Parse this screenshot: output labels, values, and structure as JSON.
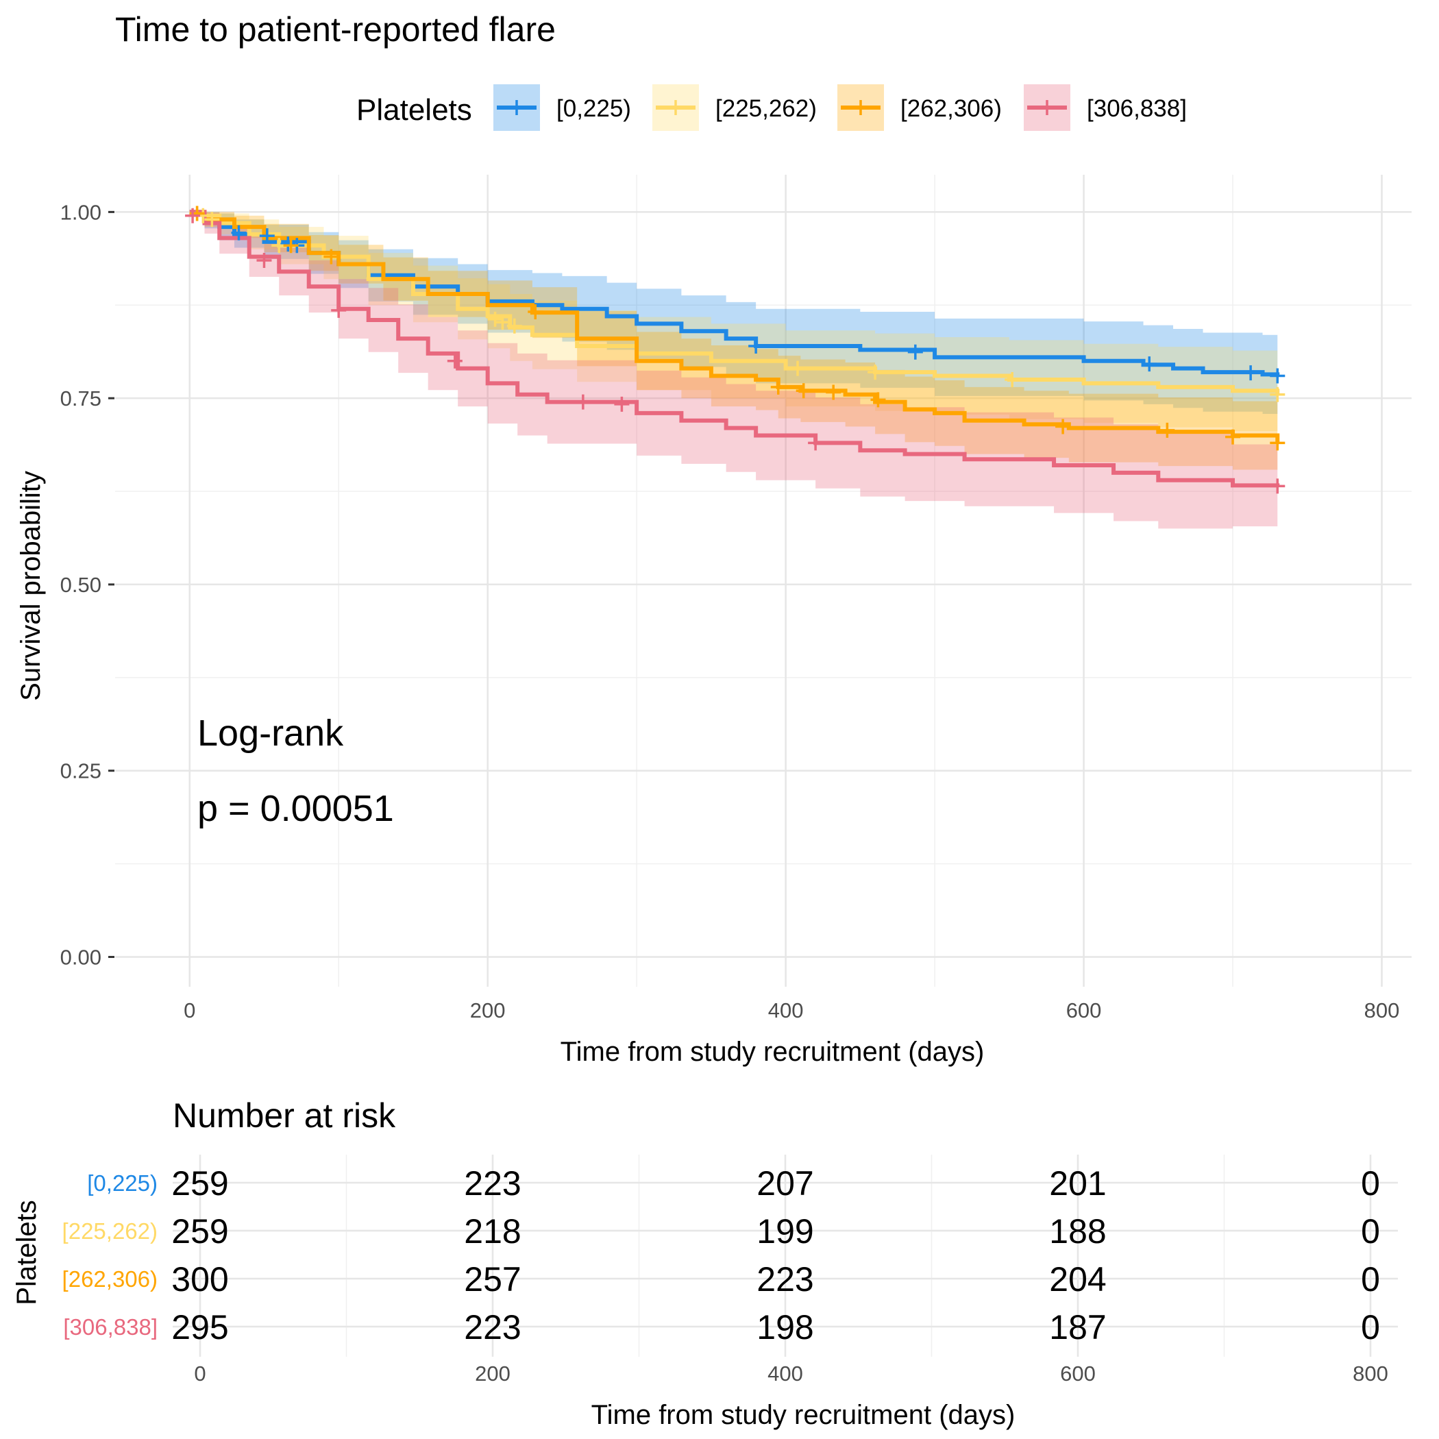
{
  "chart_data": [
    {
      "type": "line",
      "subtype": "kaplan-meier",
      "title": "Time to patient-reported flare",
      "xlabel": "Time from study recruitment (days)",
      "ylabel": "Survival probability",
      "xlim": [
        -50,
        820
      ],
      "ylim": [
        -0.04,
        1.05
      ],
      "x_ticks": [
        0,
        200,
        400,
        600,
        800
      ],
      "y_ticks": [
        0.0,
        0.25,
        0.5,
        0.75,
        1.0
      ],
      "y_tick_labels": [
        "0.00",
        "0.25",
        "0.50",
        "0.75",
        "1.00"
      ],
      "grid": true,
      "legend": {
        "title": "Platelets",
        "placement": "top"
      },
      "annotation": {
        "test": "Log-rank",
        "p_value": "p = 0.00051"
      },
      "series": [
        {
          "name": "[0,225)",
          "color": "#1E88E5",
          "x": [
            0,
            10,
            20,
            30,
            50,
            80,
            100,
            120,
            150,
            180,
            200,
            230,
            250,
            280,
            300,
            330,
            360,
            380,
            400,
            450,
            500,
            550,
            600,
            640,
            660,
            680,
            700,
            720,
            730
          ],
          "y": [
            1.0,
            0.99,
            0.98,
            0.97,
            0.96,
            0.945,
            0.93,
            0.915,
            0.9,
            0.89,
            0.88,
            0.875,
            0.87,
            0.86,
            0.85,
            0.84,
            0.83,
            0.82,
            0.82,
            0.815,
            0.805,
            0.805,
            0.8,
            0.795,
            0.79,
            0.785,
            0.785,
            0.782,
            0.78
          ],
          "lower": [
            1.0,
            0.978,
            0.962,
            0.952,
            0.937,
            0.917,
            0.898,
            0.88,
            0.862,
            0.85,
            0.838,
            0.832,
            0.826,
            0.815,
            0.803,
            0.792,
            0.781,
            0.77,
            0.77,
            0.764,
            0.753,
            0.753,
            0.747,
            0.742,
            0.737,
            0.732,
            0.732,
            0.729,
            0.727
          ],
          "upper": [
            1.0,
            1.0,
            0.998,
            0.99,
            0.983,
            0.973,
            0.962,
            0.95,
            0.938,
            0.93,
            0.922,
            0.918,
            0.914,
            0.905,
            0.897,
            0.888,
            0.879,
            0.87,
            0.87,
            0.866,
            0.857,
            0.857,
            0.853,
            0.848,
            0.843,
            0.838,
            0.838,
            0.835,
            0.833
          ],
          "censor_x": [
            33,
            52,
            66,
            72,
            380,
            487,
            644,
            712,
            730
          ],
          "censor_y": [
            0.972,
            0.968,
            0.957,
            0.955,
            0.82,
            0.812,
            0.796,
            0.784,
            0.78
          ]
        },
        {
          "name": "[225,262)",
          "color": "#FFD966",
          "x": [
            0,
            10,
            20,
            40,
            60,
            90,
            120,
            150,
            180,
            200,
            215,
            230,
            260,
            300,
            350,
            400,
            420,
            460,
            500,
            550,
            600,
            650,
            700,
            730
          ],
          "y": [
            1.0,
            0.995,
            0.985,
            0.97,
            0.955,
            0.94,
            0.91,
            0.89,
            0.87,
            0.86,
            0.845,
            0.835,
            0.82,
            0.81,
            0.8,
            0.79,
            0.79,
            0.785,
            0.78,
            0.775,
            0.77,
            0.765,
            0.76,
            0.755
          ],
          "lower": [
            1.0,
            0.986,
            0.97,
            0.95,
            0.93,
            0.91,
            0.875,
            0.852,
            0.829,
            0.817,
            0.8,
            0.789,
            0.772,
            0.761,
            0.75,
            0.739,
            0.739,
            0.733,
            0.728,
            0.722,
            0.717,
            0.711,
            0.706,
            0.7
          ],
          "upper": [
            1.0,
            1.0,
            0.998,
            0.99,
            0.98,
            0.968,
            0.945,
            0.928,
            0.911,
            0.903,
            0.89,
            0.881,
            0.868,
            0.859,
            0.85,
            0.841,
            0.841,
            0.837,
            0.832,
            0.828,
            0.823,
            0.819,
            0.814,
            0.81
          ],
          "censor_x": [
            5,
            9,
            15,
            60,
            205,
            210,
            218,
            408,
            460,
            552,
            730
          ],
          "censor_y": [
            0.998,
            0.995,
            0.99,
            0.955,
            0.856,
            0.852,
            0.847,
            0.79,
            0.785,
            0.775,
            0.755
          ],
          "legend_only": false
        },
        {
          "name": "[262,306)",
          "color": "#FFA500",
          "x": [
            0,
            10,
            30,
            50,
            80,
            100,
            130,
            160,
            200,
            230,
            260,
            300,
            330,
            350,
            380,
            395,
            410,
            440,
            460,
            480,
            500,
            520,
            560,
            590,
            620,
            650,
            700,
            730
          ],
          "y": [
            1.0,
            0.99,
            0.98,
            0.965,
            0.945,
            0.93,
            0.91,
            0.89,
            0.875,
            0.865,
            0.83,
            0.8,
            0.79,
            0.78,
            0.775,
            0.765,
            0.76,
            0.755,
            0.745,
            0.735,
            0.73,
            0.72,
            0.715,
            0.71,
            0.71,
            0.705,
            0.7,
            0.69
          ],
          "lower": [
            1.0,
            0.98,
            0.965,
            0.946,
            0.921,
            0.904,
            0.881,
            0.859,
            0.842,
            0.831,
            0.793,
            0.761,
            0.75,
            0.739,
            0.734,
            0.723,
            0.718,
            0.712,
            0.702,
            0.691,
            0.686,
            0.675,
            0.67,
            0.664,
            0.664,
            0.659,
            0.654,
            0.643
          ],
          "upper": [
            1.0,
            1.0,
            0.995,
            0.984,
            0.969,
            0.956,
            0.939,
            0.921,
            0.908,
            0.899,
            0.867,
            0.839,
            0.83,
            0.821,
            0.816,
            0.807,
            0.802,
            0.798,
            0.788,
            0.779,
            0.774,
            0.765,
            0.76,
            0.756,
            0.756,
            0.751,
            0.746,
            0.737
          ],
          "censor_x": [
            5,
            68,
            95,
            232,
            395,
            412,
            432,
            462,
            586,
            656,
            700,
            730
          ],
          "censor_y": [
            0.998,
            0.955,
            0.94,
            0.866,
            0.765,
            0.76,
            0.758,
            0.748,
            0.712,
            0.707,
            0.698,
            0.69
          ]
        },
        {
          "name": "[306,838]",
          "color": "#E8687E",
          "x": [
            0,
            10,
            20,
            40,
            60,
            80,
            100,
            120,
            140,
            160,
            180,
            200,
            220,
            240,
            260,
            300,
            330,
            360,
            380,
            420,
            450,
            480,
            520,
            580,
            620,
            650,
            680,
            700,
            730
          ],
          "y": [
            1.0,
            0.985,
            0.965,
            0.94,
            0.92,
            0.9,
            0.87,
            0.855,
            0.83,
            0.81,
            0.79,
            0.77,
            0.755,
            0.745,
            0.745,
            0.73,
            0.72,
            0.71,
            0.7,
            0.69,
            0.68,
            0.675,
            0.668,
            0.66,
            0.65,
            0.64,
            0.64,
            0.633,
            0.632
          ],
          "lower": [
            1.0,
            0.971,
            0.944,
            0.913,
            0.888,
            0.865,
            0.83,
            0.812,
            0.784,
            0.761,
            0.739,
            0.716,
            0.7,
            0.689,
            0.689,
            0.673,
            0.662,
            0.651,
            0.64,
            0.629,
            0.618,
            0.612,
            0.605,
            0.596,
            0.585,
            0.575,
            0.575,
            0.578,
            0.578
          ],
          "upper": [
            1.0,
            0.999,
            0.986,
            0.967,
            0.952,
            0.935,
            0.91,
            0.898,
            0.876,
            0.859,
            0.841,
            0.824,
            0.81,
            0.801,
            0.801,
            0.787,
            0.778,
            0.769,
            0.76,
            0.751,
            0.742,
            0.738,
            0.731,
            0.724,
            0.715,
            0.705,
            0.705,
            0.688,
            0.686
          ],
          "censor_x": [
            2,
            50,
            100,
            178,
            264,
            290,
            420,
            730
          ],
          "censor_y": [
            0.995,
            0.935,
            0.868,
            0.8,
            0.745,
            0.742,
            0.69,
            0.632
          ]
        }
      ]
    },
    {
      "type": "table",
      "title": "Number at risk",
      "xlabel": "Time from study recruitment (days)",
      "ylabel": "Platelets",
      "x_ticks": [
        0,
        200,
        400,
        600,
        800
      ],
      "rows": [
        {
          "name": "[0,225)",
          "color": "#1E88E5",
          "values": [
            "259",
            "223",
            "207",
            "201",
            "0"
          ]
        },
        {
          "name": "[225,262)",
          "color": "#FFD966",
          "values": [
            "259",
            "218",
            "199",
            "188",
            "0"
          ]
        },
        {
          "name": "[262,306)",
          "color": "#FFA500",
          "values": [
            "300",
            "257",
            "223",
            "204",
            "0"
          ]
        },
        {
          "name": "[306,838]",
          "color": "#E8687E",
          "values": [
            "295",
            "223",
            "198",
            "187",
            "0"
          ]
        }
      ]
    }
  ]
}
